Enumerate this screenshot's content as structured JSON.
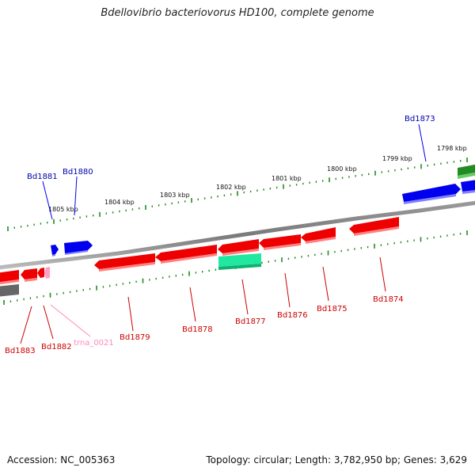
{
  "title": "Bdellovibrio bacteriovorus HD100, complete genome",
  "footer": {
    "accession": "Accession: NC_005363",
    "summary": "Topology: circular; Length: 3,782,950 bp; Genes: 3,629"
  },
  "ruler": {
    "labels": [
      "1805 kbp",
      "1804 kbp",
      "1803 kbp",
      "1802 kbp",
      "1801 kbp",
      "1800 kbp",
      "1799 kbp",
      "1798 kbp"
    ]
  },
  "colors": {
    "backbone": "#808080",
    "tick": "#228b22",
    "forward_gene": "#0000ee",
    "reverse_gene": "#ee0000",
    "rrna_like": "#20e8a0",
    "trna": "#ff9ec8",
    "label_forward": "#0000aa",
    "label_reverse": "#cc0000",
    "label_trna": "#ff88bb"
  },
  "genes": {
    "forward": [
      "Bd1881",
      "Bd1880",
      "Bd1873"
    ],
    "reverse": [
      "Bd1883",
      "Bd1882",
      "Bd1879",
      "Bd1878",
      "Bd1877",
      "Bd1876",
      "Bd1875",
      "Bd1874"
    ],
    "trna": [
      "trna_0021"
    ]
  }
}
